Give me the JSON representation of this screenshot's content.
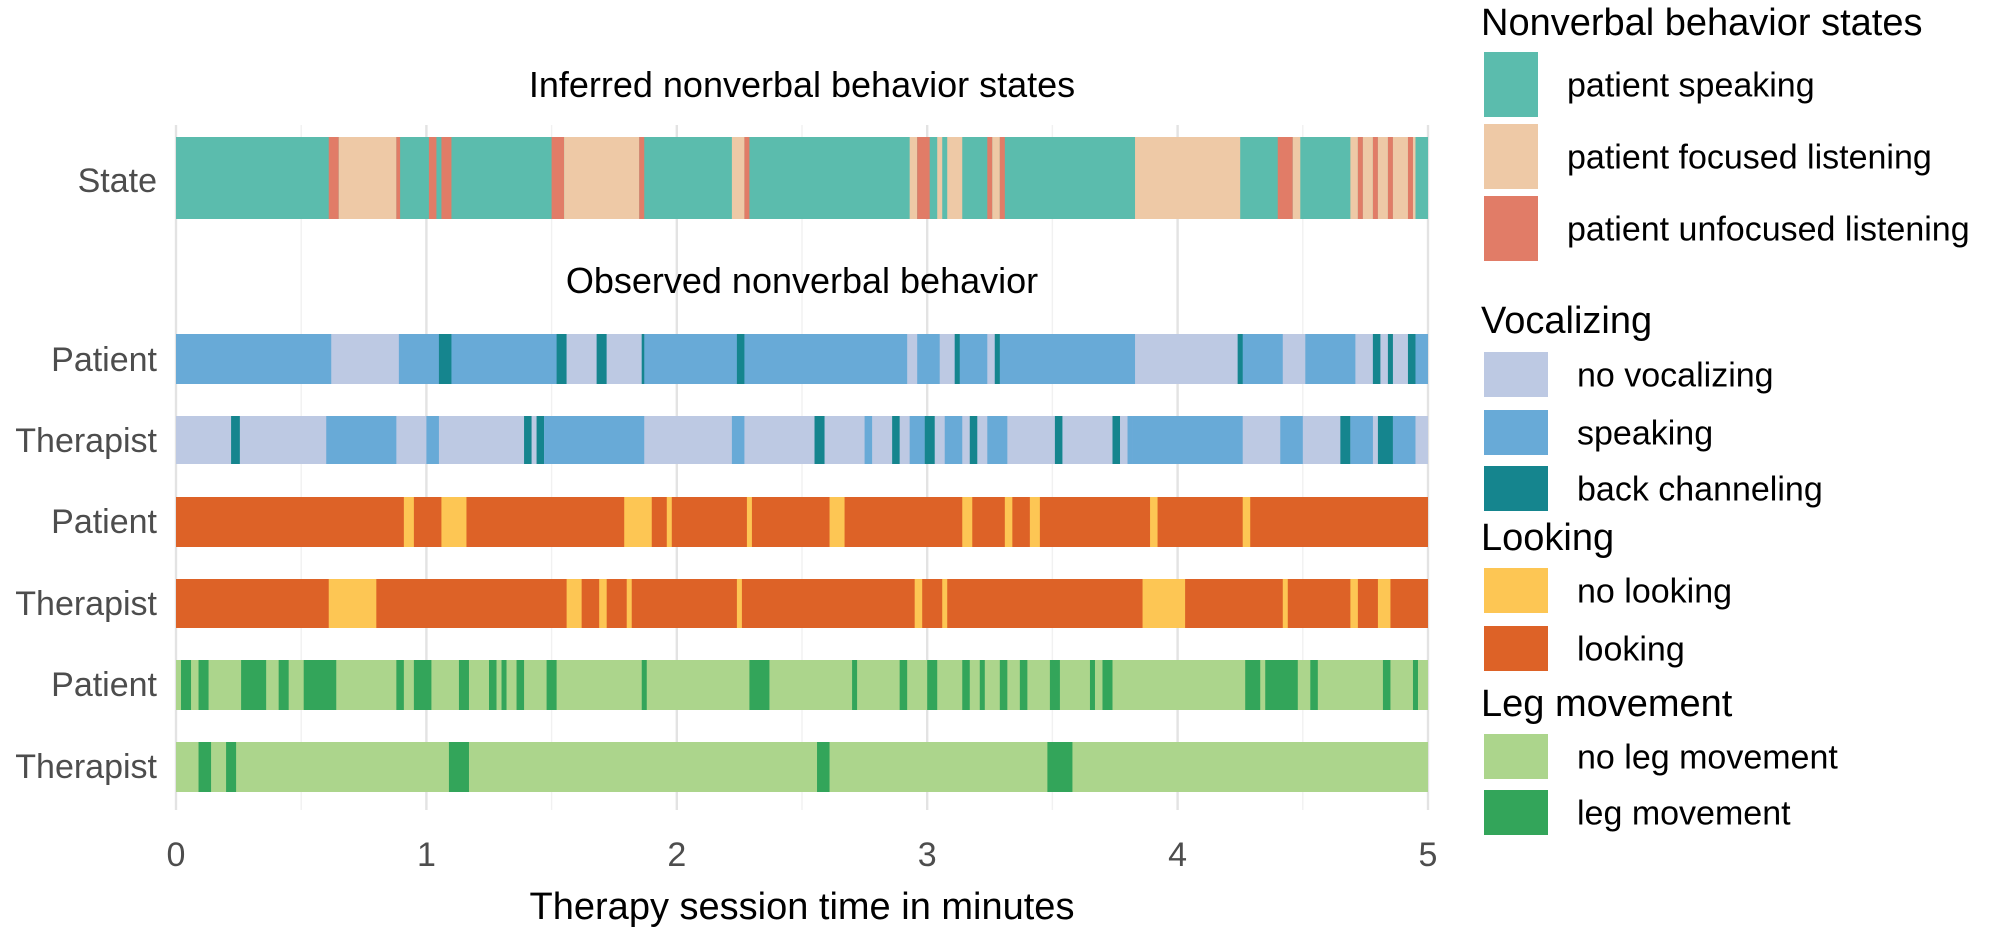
{
  "chart_data": {
    "type": "timeline",
    "xlabel": "Therapy session time in minutes",
    "xlim": [
      0,
      5
    ],
    "xticks": [
      "0",
      "1",
      "2",
      "3",
      "4",
      "5"
    ],
    "grid": true,
    "legend_position": "right",
    "colors": {
      "patient_speaking": "#5bbcad",
      "patient_focused_listening": "#eec9a6",
      "patient_unfocused_listening": "#e17c67",
      "no_vocalizing": "#bdc9e3",
      "speaking": "#68aad7",
      "back_channeling": "#15858e",
      "no_looking": "#fdc654",
      "looking": "#dd6227",
      "no_leg_movement": "#acd58c",
      "leg_movement": "#33a55a"
    },
    "panels": [
      {
        "title": "Inferred nonverbal behavior states",
        "rows": [
          "state"
        ]
      },
      {
        "title": "Observed nonverbal behavior",
        "rows": [
          "voc_patient",
          "voc_therapist",
          "look_patient",
          "look_therapist",
          "leg_patient",
          "leg_therapist"
        ]
      }
    ],
    "rows": [
      {
        "key": "state",
        "label": "State",
        "background": "patient_speaking",
        "segments": [
          [
            0.61,
            0.65,
            "patient_unfocused_listening"
          ],
          [
            0.65,
            0.88,
            "patient_focused_listening"
          ],
          [
            0.88,
            0.895,
            "patient_unfocused_listening"
          ],
          [
            1.01,
            1.04,
            "patient_unfocused_listening"
          ],
          [
            1.06,
            1.1,
            "patient_unfocused_listening"
          ],
          [
            1.5,
            1.55,
            "patient_unfocused_listening"
          ],
          [
            1.55,
            1.85,
            "patient_focused_listening"
          ],
          [
            1.85,
            1.87,
            "patient_unfocused_listening"
          ],
          [
            2.22,
            2.27,
            "patient_focused_listening"
          ],
          [
            2.27,
            2.29,
            "patient_unfocused_listening"
          ],
          [
            2.93,
            2.96,
            "patient_focused_listening"
          ],
          [
            2.96,
            3.01,
            "patient_unfocused_listening"
          ],
          [
            3.04,
            3.06,
            "patient_focused_listening"
          ],
          [
            3.08,
            3.14,
            "patient_focused_listening"
          ],
          [
            3.24,
            3.26,
            "patient_unfocused_listening"
          ],
          [
            3.26,
            3.29,
            "patient_focused_listening"
          ],
          [
            3.29,
            3.31,
            "patient_unfocused_listening"
          ],
          [
            3.83,
            4.25,
            "patient_focused_listening"
          ],
          [
            4.4,
            4.46,
            "patient_unfocused_listening"
          ],
          [
            4.46,
            4.49,
            "patient_focused_listening"
          ],
          [
            4.69,
            4.72,
            "patient_focused_listening"
          ],
          [
            4.72,
            4.74,
            "patient_unfocused_listening"
          ],
          [
            4.74,
            4.78,
            "patient_focused_listening"
          ],
          [
            4.78,
            4.8,
            "patient_unfocused_listening"
          ],
          [
            4.8,
            4.84,
            "patient_focused_listening"
          ],
          [
            4.84,
            4.86,
            "patient_unfocused_listening"
          ],
          [
            4.86,
            4.92,
            "patient_focused_listening"
          ],
          [
            4.92,
            4.94,
            "patient_unfocused_listening"
          ],
          [
            4.94,
            4.95,
            "patient_focused_listening"
          ]
        ]
      },
      {
        "key": "voc_patient",
        "label": "Patient",
        "background": "speaking",
        "segments": [
          [
            0.62,
            0.89,
            "no_vocalizing"
          ],
          [
            1.05,
            1.1,
            "back_channeling"
          ],
          [
            1.52,
            1.56,
            "back_channeling"
          ],
          [
            1.56,
            1.68,
            "no_vocalizing"
          ],
          [
            1.68,
            1.72,
            "back_channeling"
          ],
          [
            1.72,
            1.86,
            "no_vocalizing"
          ],
          [
            1.86,
            1.87,
            "back_channeling"
          ],
          [
            2.24,
            2.27,
            "back_channeling"
          ],
          [
            2.92,
            2.96,
            "no_vocalizing"
          ],
          [
            3.05,
            3.11,
            "no_vocalizing"
          ],
          [
            3.11,
            3.13,
            "back_channeling"
          ],
          [
            3.24,
            3.27,
            "no_vocalizing"
          ],
          [
            3.27,
            3.29,
            "back_channeling"
          ],
          [
            3.83,
            4.24,
            "no_vocalizing"
          ],
          [
            4.24,
            4.26,
            "back_channeling"
          ],
          [
            4.42,
            4.51,
            "no_vocalizing"
          ],
          [
            4.71,
            4.78,
            "no_vocalizing"
          ],
          [
            4.78,
            4.81,
            "back_channeling"
          ],
          [
            4.81,
            4.84,
            "no_vocalizing"
          ],
          [
            4.84,
            4.86,
            "back_channeling"
          ],
          [
            4.86,
            4.92,
            "no_vocalizing"
          ],
          [
            4.92,
            4.95,
            "back_channeling"
          ]
        ]
      },
      {
        "key": "voc_therapist",
        "label": "Therapist",
        "background": "no_vocalizing",
        "segments": [
          [
            0.22,
            0.255,
            "back_channeling"
          ],
          [
            0.6,
            0.88,
            "speaking"
          ],
          [
            1.0,
            1.05,
            "speaking"
          ],
          [
            1.39,
            1.42,
            "back_channeling"
          ],
          [
            1.44,
            1.47,
            "back_channeling"
          ],
          [
            1.47,
            1.87,
            "speaking"
          ],
          [
            2.22,
            2.27,
            "speaking"
          ],
          [
            2.55,
            2.59,
            "back_channeling"
          ],
          [
            2.75,
            2.78,
            "speaking"
          ],
          [
            2.86,
            2.89,
            "back_channeling"
          ],
          [
            2.93,
            2.99,
            "speaking"
          ],
          [
            2.99,
            3.03,
            "back_channeling"
          ],
          [
            3.07,
            3.14,
            "speaking"
          ],
          [
            3.17,
            3.2,
            "back_channeling"
          ],
          [
            3.24,
            3.32,
            "speaking"
          ],
          [
            3.51,
            3.54,
            "back_channeling"
          ],
          [
            3.74,
            3.77,
            "back_channeling"
          ],
          [
            3.8,
            3.82,
            "speaking"
          ],
          [
            3.82,
            4.26,
            "speaking"
          ],
          [
            4.41,
            4.5,
            "speaking"
          ],
          [
            4.65,
            4.69,
            "back_channeling"
          ],
          [
            4.69,
            4.78,
            "speaking"
          ],
          [
            4.8,
            4.86,
            "back_channeling"
          ],
          [
            4.86,
            4.95,
            "speaking"
          ]
        ]
      },
      {
        "key": "look_patient",
        "label": "Patient",
        "background": "looking",
        "segments": [
          [
            0.91,
            0.95,
            "no_looking"
          ],
          [
            1.06,
            1.16,
            "no_looking"
          ],
          [
            1.79,
            1.9,
            "no_looking"
          ],
          [
            1.96,
            1.98,
            "no_looking"
          ],
          [
            2.28,
            2.3,
            "no_looking"
          ],
          [
            2.61,
            2.67,
            "no_looking"
          ],
          [
            3.14,
            3.18,
            "no_looking"
          ],
          [
            3.31,
            3.34,
            "no_looking"
          ],
          [
            3.41,
            3.45,
            "no_looking"
          ],
          [
            3.89,
            3.92,
            "no_looking"
          ],
          [
            4.26,
            4.29,
            "no_looking"
          ]
        ]
      },
      {
        "key": "look_therapist",
        "label": "Therapist",
        "background": "looking",
        "segments": [
          [
            0.61,
            0.8,
            "no_looking"
          ],
          [
            1.56,
            1.62,
            "no_looking"
          ],
          [
            1.69,
            1.72,
            "no_looking"
          ],
          [
            1.8,
            1.82,
            "no_looking"
          ],
          [
            2.24,
            2.26,
            "no_looking"
          ],
          [
            2.95,
            2.98,
            "no_looking"
          ],
          [
            3.06,
            3.08,
            "no_looking"
          ],
          [
            3.86,
            4.03,
            "no_looking"
          ],
          [
            4.42,
            4.44,
            "no_looking"
          ],
          [
            4.69,
            4.72,
            "no_looking"
          ],
          [
            4.8,
            4.85,
            "no_looking"
          ]
        ]
      },
      {
        "key": "leg_patient",
        "label": "Patient",
        "background": "no_leg_movement",
        "segments": [
          [
            0.02,
            0.06,
            "leg_movement"
          ],
          [
            0.09,
            0.13,
            "leg_movement"
          ],
          [
            0.26,
            0.36,
            "leg_movement"
          ],
          [
            0.41,
            0.45,
            "leg_movement"
          ],
          [
            0.51,
            0.64,
            "leg_movement"
          ],
          [
            0.88,
            0.91,
            "leg_movement"
          ],
          [
            0.95,
            1.02,
            "leg_movement"
          ],
          [
            1.13,
            1.17,
            "leg_movement"
          ],
          [
            1.25,
            1.28,
            "leg_movement"
          ],
          [
            1.3,
            1.32,
            "leg_movement"
          ],
          [
            1.36,
            1.39,
            "leg_movement"
          ],
          [
            1.48,
            1.52,
            "leg_movement"
          ],
          [
            1.86,
            1.88,
            "leg_movement"
          ],
          [
            2.29,
            2.37,
            "leg_movement"
          ],
          [
            2.7,
            2.72,
            "leg_movement"
          ],
          [
            2.89,
            2.92,
            "leg_movement"
          ],
          [
            3.0,
            3.04,
            "leg_movement"
          ],
          [
            3.14,
            3.17,
            "leg_movement"
          ],
          [
            3.21,
            3.23,
            "leg_movement"
          ],
          [
            3.29,
            3.32,
            "leg_movement"
          ],
          [
            3.37,
            3.4,
            "leg_movement"
          ],
          [
            3.49,
            3.53,
            "leg_movement"
          ],
          [
            3.65,
            3.67,
            "leg_movement"
          ],
          [
            3.7,
            3.74,
            "leg_movement"
          ],
          [
            4.27,
            4.33,
            "leg_movement"
          ],
          [
            4.35,
            4.48,
            "leg_movement"
          ],
          [
            4.53,
            4.56,
            "leg_movement"
          ],
          [
            4.82,
            4.85,
            "leg_movement"
          ],
          [
            4.94,
            4.96,
            "leg_movement"
          ]
        ]
      },
      {
        "key": "leg_therapist",
        "label": "Therapist",
        "background": "no_leg_movement",
        "segments": [
          [
            0.09,
            0.14,
            "leg_movement"
          ],
          [
            0.2,
            0.24,
            "leg_movement"
          ],
          [
            1.09,
            1.17,
            "leg_movement"
          ],
          [
            2.56,
            2.61,
            "leg_movement"
          ],
          [
            3.48,
            3.58,
            "leg_movement"
          ]
        ]
      }
    ],
    "legend": [
      {
        "title": "Nonverbal behavior states",
        "items": [
          {
            "label": "patient speaking",
            "color": "patient_speaking"
          },
          {
            "label": "patient focused listening",
            "color": "patient_focused_listening"
          },
          {
            "label": "patient unfocused listening",
            "color": "patient_unfocused_listening"
          }
        ]
      },
      {
        "title": "Vocalizing",
        "items": [
          {
            "label": "no vocalizing",
            "color": "no_vocalizing"
          },
          {
            "label": "speaking",
            "color": "speaking"
          },
          {
            "label": "back channeling",
            "color": "back_channeling"
          }
        ]
      },
      {
        "title": "Looking",
        "items": [
          {
            "label": "no looking",
            "color": "no_looking"
          },
          {
            "label": "looking",
            "color": "looking"
          }
        ]
      },
      {
        "title": "Leg movement",
        "items": [
          {
            "label": "no leg movement",
            "color": "no_leg_movement"
          },
          {
            "label": "leg movement",
            "color": "leg_movement"
          }
        ]
      }
    ]
  }
}
